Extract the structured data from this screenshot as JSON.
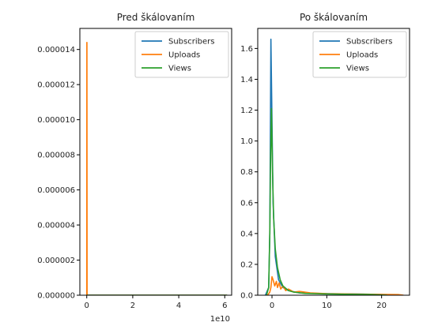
{
  "chart_data": [
    {
      "type": "line",
      "title": "Pred škálovaním",
      "xlabel": "",
      "ylabel": "",
      "x_offset_label": "1e10",
      "xlim": [
        -0.3,
        6.3
      ],
      "ylim": [
        0,
        1.52e-05
      ],
      "x_ticks": [
        0,
        2,
        4,
        6
      ],
      "x_tick_labels": [
        "0",
        "2",
        "4",
        "6"
      ],
      "y_ticks": [
        0,
        2e-06,
        4e-06,
        6e-06,
        8e-06,
        1e-05,
        1.2e-05,
        1.4e-05
      ],
      "y_tick_labels": [
        "0.000000",
        "0.000002",
        "0.000004",
        "0.000006",
        "0.000008",
        "0.000010",
        "0.000012",
        "0.000014"
      ],
      "legend_position": "top-right",
      "series": [
        {
          "name": "Subscribers",
          "color": "#1f77b4",
          "x": [
            0,
            0.01,
            0.02,
            0.05,
            6.1
          ],
          "y": [
            0,
            0,
            0,
            0,
            0
          ]
        },
        {
          "name": "Uploads",
          "color": "#ff7f0e",
          "x": [
            -0.02,
            0,
            0.004,
            0.008,
            0.015,
            0.03,
            6.1
          ],
          "y": [
            0,
            0,
            1.44e-05,
            1.44e-05,
            0,
            0,
            0
          ]
        },
        {
          "name": "Views",
          "color": "#2ca02c",
          "x": [
            0,
            0.05,
            1,
            3,
            6.1
          ],
          "y": [
            0,
            0,
            0,
            0,
            0
          ]
        }
      ]
    },
    {
      "type": "line",
      "title": "Po škálovaním",
      "xlabel": "",
      "ylabel": "",
      "xlim": [
        -2.6,
        25.1
      ],
      "ylim": [
        0,
        1.73
      ],
      "x_ticks": [
        0,
        10,
        20
      ],
      "x_tick_labels": [
        "0",
        "10",
        "20"
      ],
      "y_ticks": [
        0,
        0.2,
        0.4,
        0.6,
        0.8,
        1.0,
        1.2,
        1.4,
        1.6
      ],
      "y_tick_labels": [
        "0.0",
        "0.2",
        "0.4",
        "0.6",
        "0.8",
        "1.0",
        "1.2",
        "1.4",
        "1.6"
      ],
      "legend_position": "top-right",
      "series": [
        {
          "name": "Subscribers",
          "color": "#1f77b4",
          "x": [
            -1.2,
            -0.6,
            -0.4,
            -0.3,
            -0.2,
            0.2,
            0.6,
            1.2,
            2.0,
            3.0,
            5.0,
            10.0,
            15.0,
            20.0,
            21.0
          ],
          "y": [
            0,
            0.05,
            0.4,
            1.0,
            1.66,
            0.6,
            0.25,
            0.1,
            0.05,
            0.03,
            0.015,
            0.01,
            0.008,
            0.005,
            0
          ]
        },
        {
          "name": "Uploads",
          "color": "#ff7f0e",
          "x": [
            -0.8,
            -0.4,
            -0.2,
            0.0,
            0.2,
            0.5,
            0.8,
            1.0,
            1.3,
            1.6,
            2.0,
            2.5,
            3.0,
            4.0,
            5.0,
            7.0,
            10.0,
            14.0,
            18.0,
            21.0,
            23.0,
            24.0
          ],
          "y": [
            0,
            0.02,
            0.05,
            0.12,
            0.1,
            0.06,
            0.09,
            0.05,
            0.08,
            0.04,
            0.06,
            0.03,
            0.04,
            0.02,
            0.025,
            0.015,
            0.01,
            0.008,
            0.006,
            0.005,
            0.004,
            0
          ]
        },
        {
          "name": "Views",
          "color": "#2ca02c",
          "x": [
            -1.0,
            -0.6,
            -0.4,
            -0.25,
            -0.1,
            0.1,
            0.3,
            0.6,
            1.0,
            1.5,
            2.0,
            3.0,
            4.0,
            6.0,
            10.0,
            14.0,
            18.0,
            21.0
          ],
          "y": [
            0,
            0.05,
            0.4,
            0.9,
            1.21,
            0.8,
            0.5,
            0.3,
            0.18,
            0.1,
            0.06,
            0.03,
            0.02,
            0.012,
            0.008,
            0.006,
            0.005,
            0
          ]
        }
      ]
    }
  ]
}
